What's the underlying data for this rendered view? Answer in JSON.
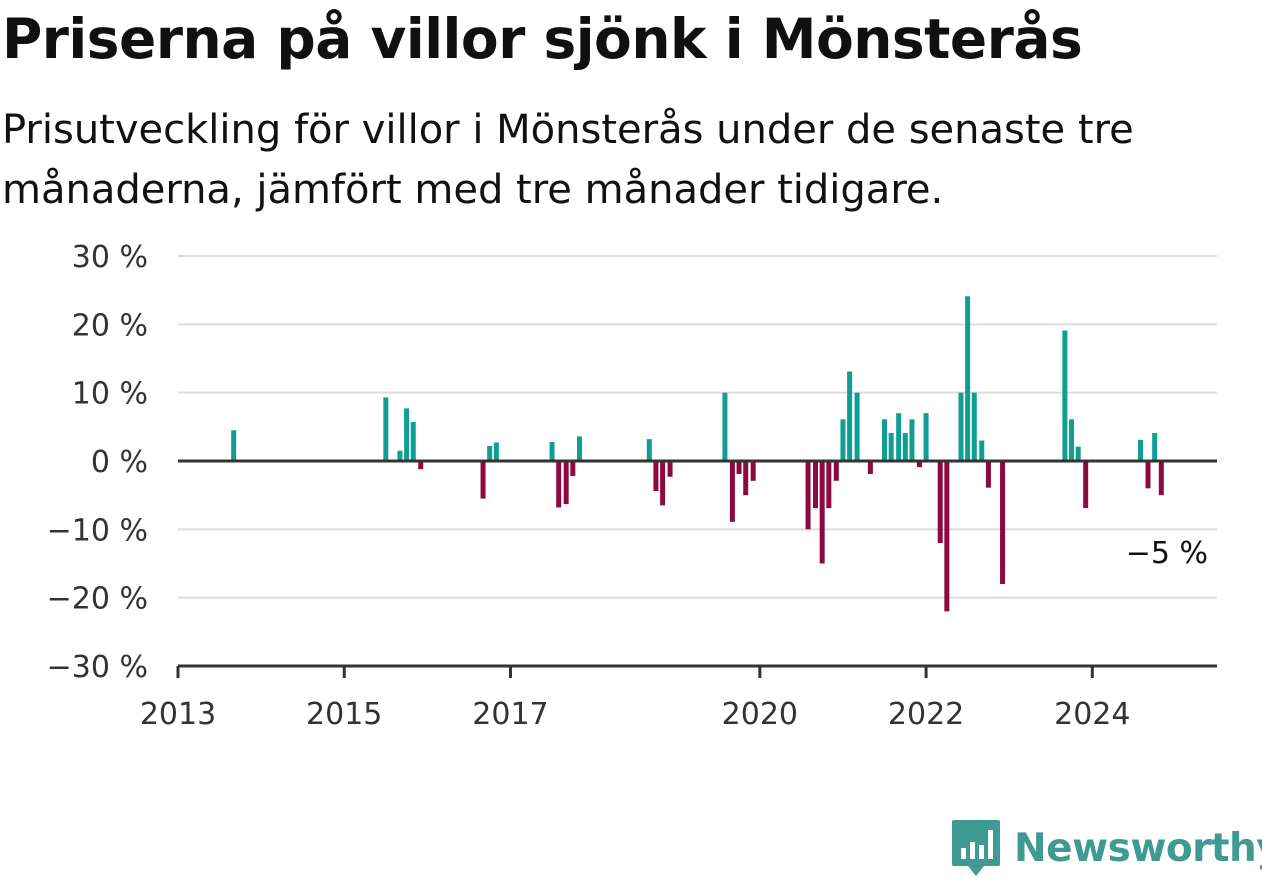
{
  "title": "Priserna på villor sjönk i Mönsterås",
  "subtitle": "Prisutveckling för villor i Mönsterås under de senaste tre månaderna, jämfört med tre månader tidigare.",
  "brand": {
    "name": "Newsworthy",
    "icon": "newsworthy-logo-icon"
  },
  "colors": {
    "positive": "#109d92",
    "negative": "#8c0a3f",
    "grid": "#dddddd",
    "axis": "#333333",
    "brand": "#3f9a93"
  },
  "chart_data": {
    "type": "bar",
    "title": "Priserna på villor sjönk i Mönsterås",
    "xlabel": "",
    "ylabel": "",
    "ylim": [
      -30,
      30
    ],
    "xlim": [
      2013,
      2025.5
    ],
    "y_ticks": [
      30,
      20,
      10,
      0,
      -10,
      -20,
      -30
    ],
    "y_tick_labels": [
      "30 %",
      "20 %",
      "10 %",
      "0 %",
      "−10 %",
      "−20 %",
      "−30 %"
    ],
    "x_ticks": [
      2013,
      2015,
      2017,
      2020,
      2022,
      2024
    ],
    "x_tick_labels": [
      "2013",
      "2015",
      "2017",
      "2020",
      "2022",
      "2024"
    ],
    "grid": true,
    "annotation": {
      "text": "−5 %",
      "x": 2024.83,
      "y": -5
    },
    "points": [
      {
        "x": 2013.67,
        "y": 4.5
      },
      {
        "x": 2015.5,
        "y": 9.3
      },
      {
        "x": 2015.67,
        "y": 1.5
      },
      {
        "x": 2015.75,
        "y": 7.7
      },
      {
        "x": 2015.83,
        "y": 5.7
      },
      {
        "x": 2015.92,
        "y": -1.2
      },
      {
        "x": 2016.67,
        "y": -5.5
      },
      {
        "x": 2016.75,
        "y": 2.2
      },
      {
        "x": 2016.83,
        "y": 2.7
      },
      {
        "x": 2017.5,
        "y": 2.8
      },
      {
        "x": 2017.58,
        "y": -6.8
      },
      {
        "x": 2017.67,
        "y": -6.3
      },
      {
        "x": 2017.75,
        "y": -2.2
      },
      {
        "x": 2017.83,
        "y": 3.6
      },
      {
        "x": 2018.67,
        "y": 3.2
      },
      {
        "x": 2018.75,
        "y": -4.4
      },
      {
        "x": 2018.83,
        "y": -6.5
      },
      {
        "x": 2018.92,
        "y": -2.3
      },
      {
        "x": 2019.58,
        "y": 10.0
      },
      {
        "x": 2019.67,
        "y": -8.9
      },
      {
        "x": 2019.75,
        "y": -1.9
      },
      {
        "x": 2019.83,
        "y": -5.0
      },
      {
        "x": 2019.92,
        "y": -2.9
      },
      {
        "x": 2020.58,
        "y": -10.0
      },
      {
        "x": 2020.67,
        "y": -6.9
      },
      {
        "x": 2020.75,
        "y": -15.0
      },
      {
        "x": 2020.83,
        "y": -6.9
      },
      {
        "x": 2020.92,
        "y": -2.9
      },
      {
        "x": 2021.0,
        "y": 6.1
      },
      {
        "x": 2021.08,
        "y": 13.1
      },
      {
        "x": 2021.17,
        "y": 10.0
      },
      {
        "x": 2021.33,
        "y": -1.9
      },
      {
        "x": 2021.5,
        "y": 6.1
      },
      {
        "x": 2021.58,
        "y": 4.1
      },
      {
        "x": 2021.67,
        "y": 7.0
      },
      {
        "x": 2021.75,
        "y": 4.1
      },
      {
        "x": 2021.83,
        "y": 6.1
      },
      {
        "x": 2021.92,
        "y": -0.9
      },
      {
        "x": 2022.0,
        "y": 7.0
      },
      {
        "x": 2022.17,
        "y": -12.0
      },
      {
        "x": 2022.25,
        "y": -22.0
      },
      {
        "x": 2022.42,
        "y": 10.0
      },
      {
        "x": 2022.5,
        "y": 24.1
      },
      {
        "x": 2022.58,
        "y": 10.0
      },
      {
        "x": 2022.67,
        "y": 3.0
      },
      {
        "x": 2022.75,
        "y": -3.9
      },
      {
        "x": 2022.92,
        "y": -18.0
      },
      {
        "x": 2023.67,
        "y": 19.1
      },
      {
        "x": 2023.75,
        "y": 6.1
      },
      {
        "x": 2023.83,
        "y": 2.1
      },
      {
        "x": 2023.92,
        "y": -6.9
      },
      {
        "x": 2024.58,
        "y": 3.1
      },
      {
        "x": 2024.67,
        "y": -4.0
      },
      {
        "x": 2024.75,
        "y": 4.1
      },
      {
        "x": 2024.83,
        "y": -5.0
      }
    ]
  }
}
